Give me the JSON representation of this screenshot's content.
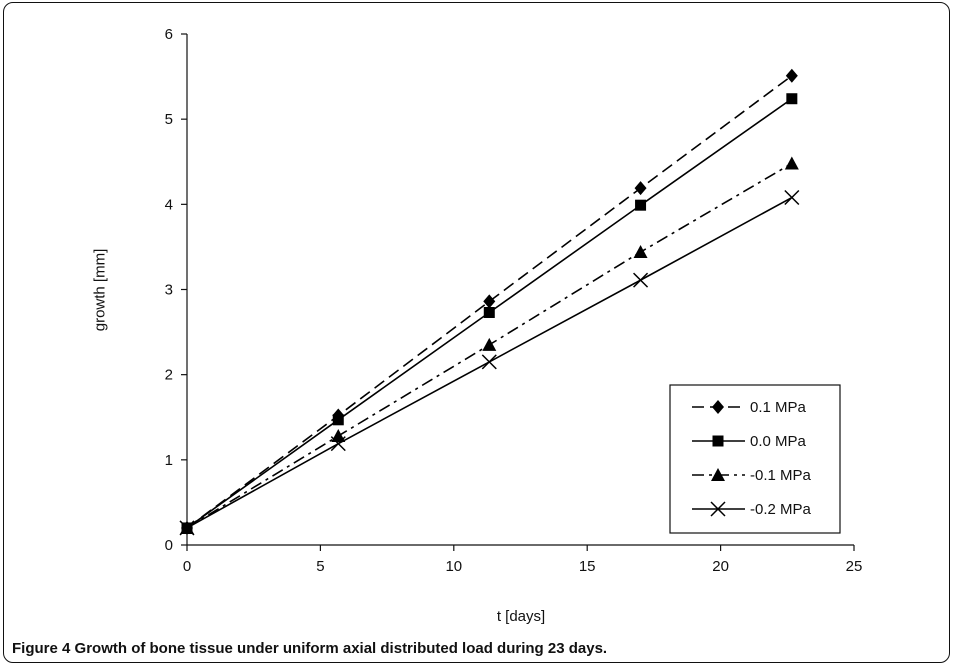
{
  "chart_data": {
    "type": "line",
    "xlabel": "t [days]",
    "ylabel": "growth [mm]",
    "xlim": [
      0,
      25
    ],
    "ylim": [
      0,
      6
    ],
    "xticks": [
      "0",
      "5",
      "10",
      "15",
      "20",
      "25"
    ],
    "yticks": [
      "0",
      "1",
      "2",
      "3",
      "4",
      "5",
      "6"
    ],
    "grid": false,
    "legend_position": "bottom-right",
    "series": [
      {
        "name": "0.1 MPa",
        "marker": "diamond",
        "line": "dashed",
        "x": [
          0,
          5.67,
          11.33,
          17,
          22.67
        ],
        "y": [
          0.2,
          1.52,
          2.86,
          4.19,
          5.51
        ]
      },
      {
        "name": "0.0 MPa",
        "marker": "square",
        "line": "solid",
        "x": [
          0,
          5.67,
          11.33,
          17,
          22.67
        ],
        "y": [
          0.2,
          1.47,
          2.73,
          3.99,
          5.24
        ]
      },
      {
        "name": "-0.1 MPa",
        "marker": "triangle",
        "line": "dashdot",
        "x": [
          0,
          5.67,
          11.33,
          17,
          22.67
        ],
        "y": [
          0.2,
          1.28,
          2.35,
          3.44,
          4.48
        ]
      },
      {
        "name": "-0.2 MPa",
        "marker": "x",
        "line": "solid",
        "x": [
          0,
          5.67,
          11.33,
          17,
          22.67
        ],
        "y": [
          0.2,
          1.19,
          2.15,
          3.11,
          4.08
        ]
      }
    ]
  },
  "caption": {
    "label": "Figure 4",
    "text": "Growth of bone tissue under uniform axial distributed load during 23 days."
  }
}
